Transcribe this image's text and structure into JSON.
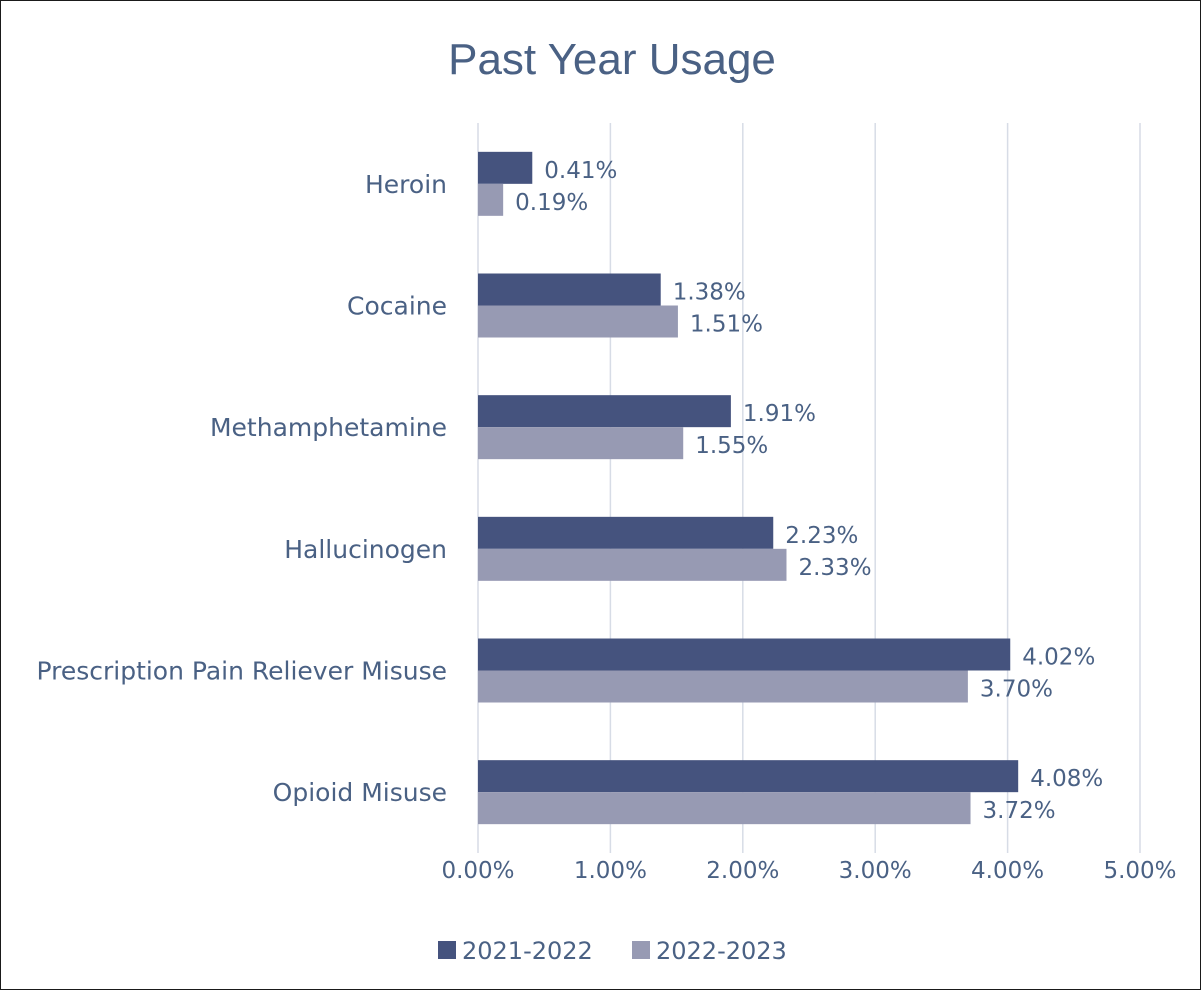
{
  "chart_data": {
    "type": "bar",
    "orientation": "horizontal",
    "title": "Past Year Usage",
    "categories": [
      "Heroin",
      "Cocaine",
      "Methamphetamine",
      "Hallucinogen",
      "Prescription Pain Reliever Misuse",
      "Opioid Misuse"
    ],
    "series": [
      {
        "name": "2021-2022",
        "color": "#45537e",
        "values": [
          0.41,
          1.38,
          1.91,
          2.23,
          4.02,
          4.08
        ],
        "labels": [
          "0.41%",
          "1.38%",
          "1.91%",
          "2.23%",
          "4.02%",
          "4.08%"
        ]
      },
      {
        "name": "2022-2023",
        "color": "#979ab3",
        "values": [
          0.19,
          1.51,
          1.55,
          2.33,
          3.7,
          3.72
        ],
        "labels": [
          "0.19%",
          "1.51%",
          "1.55%",
          "2.33%",
          "3.70%",
          "3.72%"
        ]
      }
    ],
    "xlim": [
      0,
      5
    ],
    "ticks": [
      0,
      1,
      2,
      3,
      4,
      5
    ],
    "tick_labels": [
      "0.00%",
      "1.00%",
      "2.00%",
      "3.00%",
      "4.00%",
      "5.00%"
    ],
    "grid": true,
    "legend_position": "bottom",
    "text_color": "#4a6184",
    "grid_color": "#d7dce6"
  }
}
